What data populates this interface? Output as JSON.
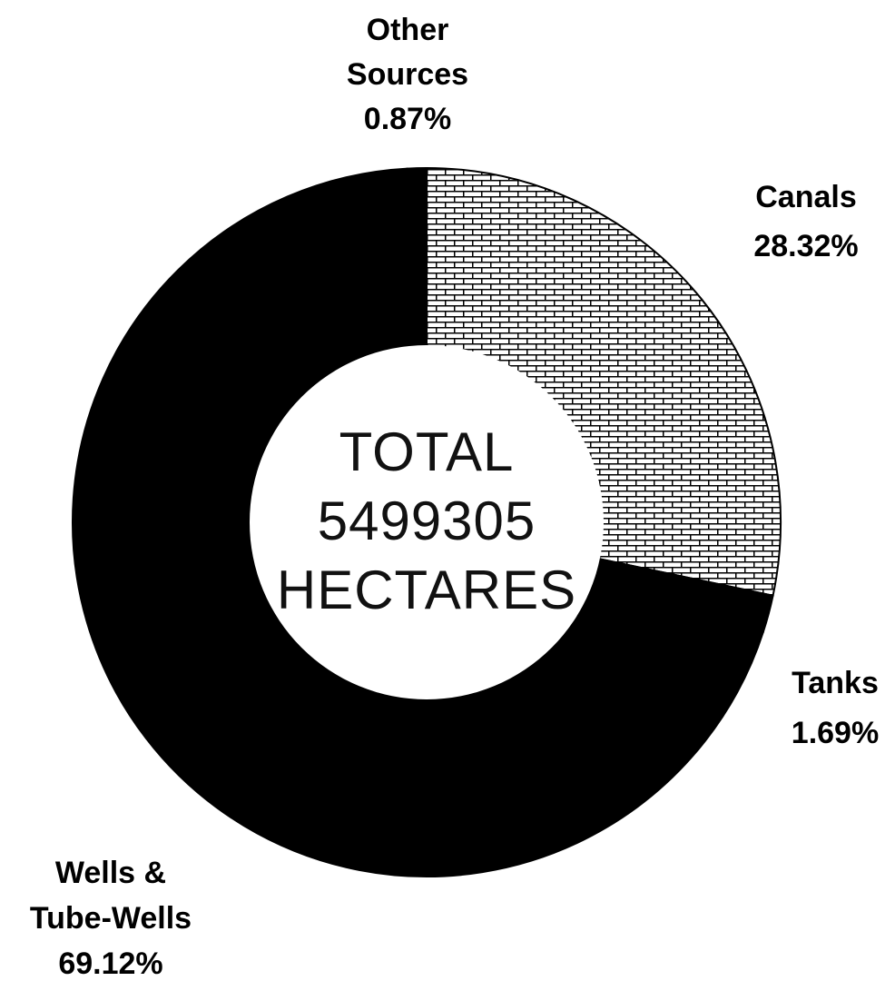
{
  "chart_data": {
    "type": "pie",
    "variant": "donut",
    "slices": [
      {
        "name": "Canals",
        "value": 28.32,
        "label": "28.32%",
        "fill": "brick-pattern"
      },
      {
        "name": "Tanks",
        "value": 1.69,
        "label": "1.69%",
        "fill": "#000000"
      },
      {
        "name": "Wells & Tube-Wells",
        "value": 69.12,
        "label": "69.12%",
        "fill": "#000000"
      },
      {
        "name": "Other Sources",
        "value": 0.87,
        "label": "0.87%",
        "fill": "#000000"
      }
    ],
    "center_text": [
      "TOTAL",
      "5499305",
      "HECTARES"
    ],
    "legend": "none",
    "start": "top",
    "direction": "clockwise"
  },
  "colors": {
    "ink": "#000000",
    "paper": "#ffffff",
    "center_text": "#111111"
  }
}
